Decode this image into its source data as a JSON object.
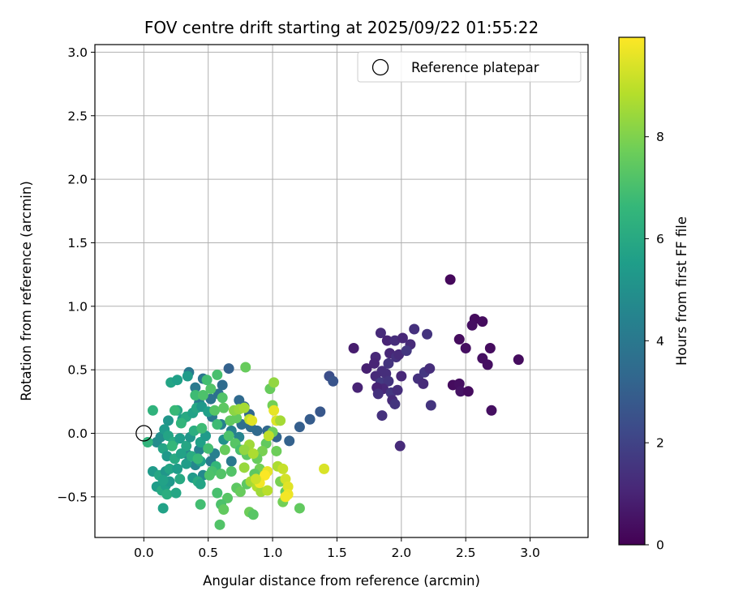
{
  "chart_data": {
    "type": "scatter",
    "title": "FOV centre drift starting at 2025/09/22 01:55:22",
    "xlabel": "Angular distance from reference (arcmin)",
    "ylabel": "Rotation from reference (arcmin)",
    "xlim": [
      -0.38,
      3.45
    ],
    "ylim": [
      -0.82,
      3.06
    ],
    "xticks": [
      0.0,
      0.5,
      1.0,
      1.5,
      2.0,
      2.5,
      3.0
    ],
    "xtick_labels": [
      "0.0",
      "0.5",
      "1.0",
      "1.5",
      "2.0",
      "2.5",
      "3.0"
    ],
    "yticks": [
      -0.5,
      0.0,
      0.5,
      1.0,
      1.5,
      2.0,
      2.5,
      3.0
    ],
    "ytick_labels": [
      "−0.5",
      "0.0",
      "0.5",
      "1.0",
      "1.5",
      "2.0",
      "2.5",
      "3.0"
    ],
    "grid": true,
    "legend": {
      "position": "top-right",
      "entries": [
        {
          "label": "Reference platepar",
          "marker": "open-circle",
          "x": 0.0,
          "y": 0.0
        }
      ]
    },
    "colorbar": {
      "label": "Hours from first FF file",
      "colormap": "viridis",
      "range": [
        0,
        9.95
      ],
      "ticks": [
        0,
        2,
        4,
        6,
        8
      ],
      "tick_labels": [
        "0",
        "2",
        "4",
        "6",
        "8"
      ]
    },
    "colormap_stops": [
      "#440154",
      "#482878",
      "#3e4989",
      "#31688e",
      "#26828e",
      "#1f9e89",
      "#35b779",
      "#6ece58",
      "#b5de2b",
      "#fde725"
    ],
    "reference_color": "#000000",
    "grid_color": "#b0b0b0",
    "points": [
      {
        "x": 2.38,
        "y": 1.21,
        "t": 0.2
      },
      {
        "x": 2.57,
        "y": 0.9,
        "t": 0.3
      },
      {
        "x": 2.63,
        "y": 0.88,
        "t": 0.3
      },
      {
        "x": 2.55,
        "y": 0.85,
        "t": 0.4
      },
      {
        "x": 2.45,
        "y": 0.74,
        "t": 0.3
      },
      {
        "x": 2.5,
        "y": 0.67,
        "t": 0.4
      },
      {
        "x": 2.69,
        "y": 0.67,
        "t": 0.3
      },
      {
        "x": 2.63,
        "y": 0.59,
        "t": 0.4
      },
      {
        "x": 2.91,
        "y": 0.58,
        "t": 0.3
      },
      {
        "x": 2.67,
        "y": 0.54,
        "t": 0.4
      },
      {
        "x": 2.4,
        "y": 0.38,
        "t": 0.3
      },
      {
        "x": 2.45,
        "y": 0.39,
        "t": 0.4
      },
      {
        "x": 2.46,
        "y": 0.33,
        "t": 0.5
      },
      {
        "x": 2.52,
        "y": 0.33,
        "t": 0.3
      },
      {
        "x": 2.7,
        "y": 0.18,
        "t": 0.4
      },
      {
        "x": 1.63,
        "y": 0.67,
        "t": 0.8
      },
      {
        "x": 1.73,
        "y": 0.51,
        "t": 0.9
      },
      {
        "x": 1.66,
        "y": 0.36,
        "t": 1.0
      },
      {
        "x": 1.8,
        "y": 0.6,
        "t": 1.1
      },
      {
        "x": 1.84,
        "y": 0.79,
        "t": 1.2
      },
      {
        "x": 1.89,
        "y": 0.73,
        "t": 1.0
      },
      {
        "x": 1.95,
        "y": 0.73,
        "t": 1.3
      },
      {
        "x": 2.01,
        "y": 0.75,
        "t": 1.1
      },
      {
        "x": 2.1,
        "y": 0.82,
        "t": 1.4
      },
      {
        "x": 2.07,
        "y": 0.7,
        "t": 1.2
      },
      {
        "x": 2.2,
        "y": 0.78,
        "t": 1.5
      },
      {
        "x": 1.79,
        "y": 0.55,
        "t": 1.0
      },
      {
        "x": 1.85,
        "y": 0.49,
        "t": 1.3
      },
      {
        "x": 1.91,
        "y": 0.63,
        "t": 1.1
      },
      {
        "x": 1.96,
        "y": 0.6,
        "t": 1.4
      },
      {
        "x": 1.98,
        "y": 0.62,
        "t": 1.2
      },
      {
        "x": 2.04,
        "y": 0.65,
        "t": 1.6
      },
      {
        "x": 1.9,
        "y": 0.55,
        "t": 1.5
      },
      {
        "x": 1.88,
        "y": 0.47,
        "t": 1.3
      },
      {
        "x": 1.8,
        "y": 0.45,
        "t": 1.2
      },
      {
        "x": 1.84,
        "y": 0.4,
        "t": 1.7
      },
      {
        "x": 1.9,
        "y": 0.41,
        "t": 1.5
      },
      {
        "x": 1.86,
        "y": 0.35,
        "t": 1.1
      },
      {
        "x": 1.81,
        "y": 0.36,
        "t": 1.0
      },
      {
        "x": 1.82,
        "y": 0.31,
        "t": 1.4
      },
      {
        "x": 1.92,
        "y": 0.32,
        "t": 1.6
      },
      {
        "x": 1.97,
        "y": 0.34,
        "t": 1.3
      },
      {
        "x": 1.93,
        "y": 0.26,
        "t": 1.2
      },
      {
        "x": 1.95,
        "y": 0.23,
        "t": 1.5
      },
      {
        "x": 2.0,
        "y": 0.45,
        "t": 1.1
      },
      {
        "x": 2.13,
        "y": 0.43,
        "t": 1.4
      },
      {
        "x": 2.17,
        "y": 0.39,
        "t": 1.2
      },
      {
        "x": 2.18,
        "y": 0.48,
        "t": 1.6
      },
      {
        "x": 2.22,
        "y": 0.51,
        "t": 1.3
      },
      {
        "x": 2.23,
        "y": 0.22,
        "t": 1.5
      },
      {
        "x": 1.85,
        "y": 0.14,
        "t": 1.4
      },
      {
        "x": 1.99,
        "y": -0.1,
        "t": 1.2
      },
      {
        "x": 1.44,
        "y": 0.45,
        "t": 2.4
      },
      {
        "x": 1.47,
        "y": 0.41,
        "t": 2.6
      },
      {
        "x": 1.37,
        "y": 0.17,
        "t": 2.7
      },
      {
        "x": 1.29,
        "y": 0.11,
        "t": 2.9
      },
      {
        "x": 1.21,
        "y": 0.05,
        "t": 3.0
      },
      {
        "x": 1.13,
        "y": -0.06,
        "t": 3.1
      },
      {
        "x": 1.03,
        "y": -0.03,
        "t": 3.2
      },
      {
        "x": 0.96,
        "y": 0.02,
        "t": 3.3
      },
      {
        "x": 0.88,
        "y": 0.02,
        "t": 3.4
      },
      {
        "x": 0.83,
        "y": 0.05,
        "t": 3.5
      },
      {
        "x": 0.76,
        "y": 0.07,
        "t": 3.6
      },
      {
        "x": 0.82,
        "y": 0.15,
        "t": 3.3
      },
      {
        "x": 0.78,
        "y": 0.21,
        "t": 3.2
      },
      {
        "x": 0.74,
        "y": 0.26,
        "t": 3.4
      },
      {
        "x": 0.66,
        "y": 0.51,
        "t": 3.1
      },
      {
        "x": 0.61,
        "y": 0.38,
        "t": 3.5
      },
      {
        "x": 0.58,
        "y": 0.31,
        "t": 3.7
      },
      {
        "x": 0.52,
        "y": 0.27,
        "t": 3.8
      },
      {
        "x": 0.46,
        "y": 0.43,
        "t": 3.9
      },
      {
        "x": 0.35,
        "y": 0.48,
        "t": 4.0
      },
      {
        "x": 0.4,
        "y": 0.36,
        "t": 4.1
      },
      {
        "x": 0.43,
        "y": 0.24,
        "t": 4.2
      },
      {
        "x": 0.53,
        "y": 0.13,
        "t": 4.0
      },
      {
        "x": 0.6,
        "y": 0.07,
        "t": 4.3
      },
      {
        "x": 0.68,
        "y": 0.02,
        "t": 4.4
      },
      {
        "x": 0.74,
        "y": -0.03,
        "t": 4.5
      },
      {
        "x": 0.68,
        "y": -0.22,
        "t": 4.1
      },
      {
        "x": 0.55,
        "y": -0.16,
        "t": 4.3
      },
      {
        "x": 0.52,
        "y": -0.22,
        "t": 4.2
      },
      {
        "x": 0.4,
        "y": -0.25,
        "t": 4.6
      },
      {
        "x": 0.43,
        "y": -0.13,
        "t": 4.4
      },
      {
        "x": 0.46,
        "y": -0.33,
        "t": 4.7
      },
      {
        "x": 0.33,
        "y": -0.16,
        "t": 4.5
      },
      {
        "x": 0.1,
        "y": -0.07,
        "t": 4.8
      },
      {
        "x": 0.13,
        "y": -0.03,
        "t": 4.9
      },
      {
        "x": 0.62,
        "y": -0.05,
        "t": 5.0
      },
      {
        "x": 0.19,
        "y": 0.1,
        "t": 5.2
      },
      {
        "x": 0.21,
        "y": 0.4,
        "t": 5.8
      },
      {
        "x": 0.26,
        "y": 0.42,
        "t": 5.6
      },
      {
        "x": 0.34,
        "y": 0.45,
        "t": 5.4
      },
      {
        "x": 0.26,
        "y": 0.18,
        "t": 5.9
      },
      {
        "x": 0.3,
        "y": 0.11,
        "t": 5.5
      },
      {
        "x": 0.33,
        "y": 0.13,
        "t": 6.0
      },
      {
        "x": 0.38,
        "y": 0.16,
        "t": 5.7
      },
      {
        "x": 0.41,
        "y": 0.2,
        "t": 5.9
      },
      {
        "x": 0.45,
        "y": 0.21,
        "t": 5.3
      },
      {
        "x": 0.5,
        "y": 0.17,
        "t": 5.6
      },
      {
        "x": 0.16,
        "y": 0.03,
        "t": 5.4
      },
      {
        "x": 0.19,
        "y": -0.02,
        "t": 5.8
      },
      {
        "x": 0.23,
        "y": -0.07,
        "t": 6.1
      },
      {
        "x": 0.28,
        "y": -0.04,
        "t": 5.5
      },
      {
        "x": 0.33,
        "y": -0.1,
        "t": 5.9
      },
      {
        "x": 0.36,
        "y": -0.03,
        "t": 5.2
      },
      {
        "x": 0.39,
        "y": 0.02,
        "t": 6.2
      },
      {
        "x": 0.44,
        "y": -0.07,
        "t": 5.6
      },
      {
        "x": 0.48,
        "y": -0.02,
        "t": 5.4
      },
      {
        "x": 0.15,
        "y": -0.12,
        "t": 5.8
      },
      {
        "x": 0.18,
        "y": -0.18,
        "t": 5.3
      },
      {
        "x": 0.24,
        "y": -0.2,
        "t": 6.0
      },
      {
        "x": 0.29,
        "y": -0.16,
        "t": 5.7
      },
      {
        "x": 0.33,
        "y": -0.24,
        "t": 5.5
      },
      {
        "x": 0.37,
        "y": -0.18,
        "t": 6.1
      },
      {
        "x": 0.44,
        "y": -0.22,
        "t": 5.6
      },
      {
        "x": 0.07,
        "y": -0.3,
        "t": 5.4
      },
      {
        "x": 0.12,
        "y": -0.33,
        "t": 5.9
      },
      {
        "x": 0.17,
        "y": -0.3,
        "t": 5.2
      },
      {
        "x": 0.2,
        "y": -0.28,
        "t": 5.8
      },
      {
        "x": 0.1,
        "y": -0.42,
        "t": 5.5
      },
      {
        "x": 0.14,
        "y": -0.45,
        "t": 6.0
      },
      {
        "x": 0.17,
        "y": -0.41,
        "t": 5.6
      },
      {
        "x": 0.2,
        "y": -0.38,
        "t": 5.3
      },
      {
        "x": 0.15,
        "y": -0.37,
        "t": 5.7
      },
      {
        "x": 0.18,
        "y": -0.48,
        "t": 6.2
      },
      {
        "x": 0.25,
        "y": -0.47,
        "t": 5.9
      },
      {
        "x": 0.15,
        "y": -0.59,
        "t": 5.7
      },
      {
        "x": 0.38,
        "y": -0.35,
        "t": 5.4
      },
      {
        "x": 0.42,
        "y": -0.38,
        "t": 6.1
      },
      {
        "x": 0.44,
        "y": -0.4,
        "t": 5.8
      },
      {
        "x": 0.26,
        "y": -0.28,
        "t": 5.5
      },
      {
        "x": 0.28,
        "y": -0.36,
        "t": 6.0
      },
      {
        "x": 0.07,
        "y": 0.18,
        "t": 6.4
      },
      {
        "x": 0.03,
        "y": -0.07,
        "t": 6.5
      },
      {
        "x": 0.22,
        "y": -0.1,
        "t": 6.6
      },
      {
        "x": 0.24,
        "y": 0.18,
        "t": 6.7
      },
      {
        "x": 0.29,
        "y": 0.08,
        "t": 6.5
      },
      {
        "x": 0.45,
        "y": 0.04,
        "t": 6.8
      },
      {
        "x": 0.5,
        "y": -0.12,
        "t": 6.9
      },
      {
        "x": 0.56,
        "y": -0.26,
        "t": 6.6
      },
      {
        "x": 0.53,
        "y": -0.3,
        "t": 7.0
      },
      {
        "x": 0.51,
        "y": -0.33,
        "t": 7.1
      },
      {
        "x": 0.6,
        "y": -0.32,
        "t": 7.2
      },
      {
        "x": 0.44,
        "y": -0.56,
        "t": 6.9
      },
      {
        "x": 0.57,
        "y": -0.47,
        "t": 7.0
      },
      {
        "x": 0.42,
        "y": -0.2,
        "t": 6.7
      },
      {
        "x": 0.4,
        "y": 0.3,
        "t": 6.8
      },
      {
        "x": 0.46,
        "y": 0.3,
        "t": 7.1
      },
      {
        "x": 0.52,
        "y": 0.35,
        "t": 7.2
      },
      {
        "x": 0.57,
        "y": 0.46,
        "t": 7.0
      },
      {
        "x": 0.49,
        "y": 0.42,
        "t": 6.9
      },
      {
        "x": 0.61,
        "y": 0.28,
        "t": 7.2
      },
      {
        "x": 0.55,
        "y": 0.18,
        "t": 7.3
      },
      {
        "x": 0.57,
        "y": 0.07,
        "t": 6.8
      },
      {
        "x": 0.62,
        "y": 0.2,
        "t": 7.4
      },
      {
        "x": 0.67,
        "y": 0.1,
        "t": 7.5
      },
      {
        "x": 0.66,
        "y": -0.02,
        "t": 7.1
      },
      {
        "x": 0.71,
        "y": -0.08,
        "t": 7.3
      },
      {
        "x": 0.75,
        "y": -0.13,
        "t": 7.0
      },
      {
        "x": 0.8,
        "y": -0.17,
        "t": 7.4
      },
      {
        "x": 0.79,
        "y": 0.52,
        "t": 7.6
      },
      {
        "x": 0.72,
        "y": 0.12,
        "t": 7.5
      },
      {
        "x": 0.63,
        "y": -0.13,
        "t": 7.6
      },
      {
        "x": 0.68,
        "y": -0.3,
        "t": 7.2
      },
      {
        "x": 0.72,
        "y": -0.43,
        "t": 7.4
      },
      {
        "x": 0.65,
        "y": -0.51,
        "t": 7.3
      },
      {
        "x": 0.6,
        "y": -0.56,
        "t": 7.1
      },
      {
        "x": 0.62,
        "y": -0.6,
        "t": 7.5
      },
      {
        "x": 0.59,
        "y": -0.72,
        "t": 7.2
      },
      {
        "x": 0.75,
        "y": -0.46,
        "t": 7.6
      },
      {
        "x": 0.8,
        "y": -0.4,
        "t": 7.4
      },
      {
        "x": 0.82,
        "y": -0.62,
        "t": 7.7
      },
      {
        "x": 0.85,
        "y": -0.64,
        "t": 7.3
      },
      {
        "x": 0.98,
        "y": 0.35,
        "t": 7.6
      },
      {
        "x": 1.0,
        "y": 0.22,
        "t": 7.8
      },
      {
        "x": 1.0,
        "y": 0.01,
        "t": 7.7
      },
      {
        "x": 0.95,
        "y": -0.08,
        "t": 7.5
      },
      {
        "x": 0.92,
        "y": -0.14,
        "t": 7.9
      },
      {
        "x": 0.88,
        "y": -0.2,
        "t": 7.6
      },
      {
        "x": 0.9,
        "y": -0.28,
        "t": 7.8
      },
      {
        "x": 0.86,
        "y": -0.32,
        "t": 7.4
      },
      {
        "x": 1.03,
        "y": -0.14,
        "t": 7.7
      },
      {
        "x": 1.06,
        "y": -0.38,
        "t": 7.9
      },
      {
        "x": 1.1,
        "y": -0.46,
        "t": 7.6
      },
      {
        "x": 1.08,
        "y": -0.54,
        "t": 7.8
      },
      {
        "x": 1.21,
        "y": -0.59,
        "t": 7.5
      },
      {
        "x": 0.7,
        "y": 0.18,
        "t": 8.2
      },
      {
        "x": 0.74,
        "y": 0.19,
        "t": 8.4
      },
      {
        "x": 0.78,
        "y": 0.2,
        "t": 8.6
      },
      {
        "x": 0.82,
        "y": 0.11,
        "t": 9.0
      },
      {
        "x": 0.82,
        "y": -0.09,
        "t": 8.5
      },
      {
        "x": 0.78,
        "y": -0.13,
        "t": 8.3
      },
      {
        "x": 0.85,
        "y": -0.16,
        "t": 8.7
      },
      {
        "x": 0.78,
        "y": -0.27,
        "t": 8.4
      },
      {
        "x": 0.83,
        "y": -0.38,
        "t": 8.6
      },
      {
        "x": 0.88,
        "y": -0.42,
        "t": 8.8
      },
      {
        "x": 0.91,
        "y": -0.46,
        "t": 8.5
      },
      {
        "x": 0.96,
        "y": -0.45,
        "t": 8.9
      },
      {
        "x": 1.01,
        "y": 0.4,
        "t": 8.3
      },
      {
        "x": 1.03,
        "y": 0.1,
        "t": 9.4
      },
      {
        "x": 1.06,
        "y": 0.1,
        "t": 8.6
      },
      {
        "x": 1.04,
        "y": -0.26,
        "t": 8.7
      },
      {
        "x": 1.08,
        "y": -0.28,
        "t": 9.1
      },
      {
        "x": 1.1,
        "y": -0.36,
        "t": 9.3
      },
      {
        "x": 1.12,
        "y": -0.42,
        "t": 9.5
      },
      {
        "x": 1.12,
        "y": -0.48,
        "t": 9.7
      },
      {
        "x": 1.1,
        "y": -0.5,
        "t": 9.8
      },
      {
        "x": 0.96,
        "y": -0.3,
        "t": 9.6
      },
      {
        "x": 0.94,
        "y": -0.33,
        "t": 9.9
      },
      {
        "x": 0.9,
        "y": -0.39,
        "t": 9.8
      },
      {
        "x": 0.87,
        "y": -0.36,
        "t": 9.2
      },
      {
        "x": 1.01,
        "y": 0.18,
        "t": 9.6
      },
      {
        "x": 0.84,
        "y": 0.1,
        "t": 9.5
      },
      {
        "x": 1.4,
        "y": -0.28,
        "t": 9.4
      },
      {
        "x": 0.97,
        "y": -0.02,
        "t": 9.0
      }
    ]
  }
}
